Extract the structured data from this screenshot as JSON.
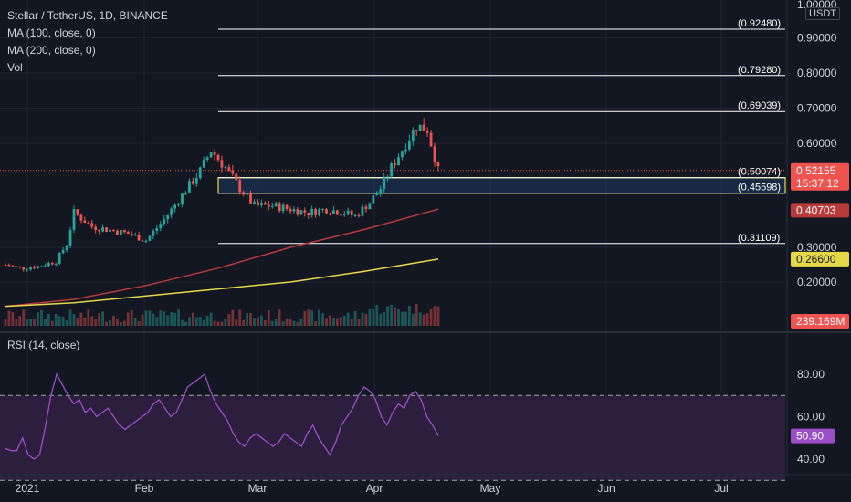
{
  "header": {
    "symbol": "Stellar / TetherUS, 1D, BINANCE",
    "ma100": "MA (100, close, 0)",
    "ma200": "MA (200, close, 0)",
    "vol": "Vol",
    "rsi": "RSI (14, close)",
    "unit": "USDT"
  },
  "colors": {
    "background": "#131722",
    "up": "#26a69a",
    "down": "#ef5350",
    "ma100": "#b83a3a",
    "ma200": "#e5d94a",
    "zone": "#1e3a5f",
    "zone_border": "#e5d94a",
    "rsi": "#9b4fc7",
    "rsi_band": "#2b1f3d",
    "level": "#ffffff"
  },
  "chart_data": [
    {
      "type": "candlestick",
      "title": "Stellar / TetherUS, 1D, BINANCE",
      "ylim": [
        0.1,
        1.0
      ],
      "y_ticks": [
        "1.00000",
        "0.90000",
        "0.80000",
        "0.70000",
        "0.60000",
        "0.30000",
        "0.20000"
      ],
      "x_ticks": [
        "2021",
        "Feb",
        "Mar",
        "Apr",
        "May",
        "Jun",
        "Jul"
      ],
      "close_path": [
        [
          1,
          0.25
        ],
        [
          5,
          0.24
        ],
        [
          10,
          0.245
        ],
        [
          15,
          0.26
        ],
        [
          18,
          0.31
        ],
        [
          20,
          0.4
        ],
        [
          25,
          0.36
        ],
        [
          30,
          0.35
        ],
        [
          35,
          0.34
        ],
        [
          40,
          0.32
        ],
        [
          45,
          0.38
        ],
        [
          50,
          0.45
        ],
        [
          55,
          0.52
        ],
        [
          58,
          0.58
        ],
        [
          62,
          0.53
        ],
        [
          66,
          0.47
        ],
        [
          70,
          0.42
        ],
        [
          75,
          0.42
        ],
        [
          80,
          0.41
        ],
        [
          85,
          0.4
        ],
        [
          90,
          0.41
        ],
        [
          95,
          0.4
        ],
        [
          98,
          0.39
        ],
        [
          102,
          0.43
        ],
        [
          105,
          0.47
        ],
        [
          108,
          0.53
        ],
        [
          112,
          0.6
        ],
        [
          115,
          0.65
        ],
        [
          118,
          0.64
        ],
        [
          121,
          0.52
        ]
      ],
      "levels": [
        {
          "label": "(0.92480)",
          "value": 0.9248
        },
        {
          "label": "(0.79280)",
          "value": 0.7928
        },
        {
          "label": "(0.69039)",
          "value": 0.69039
        },
        {
          "label": "(0.50074)",
          "value": 0.50074
        },
        {
          "label": "(0.45598)",
          "value": 0.45598
        },
        {
          "label": "(0.31109)",
          "value": 0.31109
        }
      ],
      "zone": [
        0.45598,
        0.50074
      ],
      "price_badges": [
        {
          "label": "0.52155",
          "sub": "15:37:12",
          "value": 0.52155,
          "color": "#ef5350"
        },
        {
          "label": "0.40703",
          "value": 0.40703,
          "color": "#b83a3a"
        },
        {
          "label": "0.26600",
          "value": 0.266,
          "color": "#e5d94a"
        },
        {
          "label": "239.169M",
          "value": 0.123,
          "color": "#ef5350"
        }
      ],
      "ma100_path": [
        [
          1,
          0.13
        ],
        [
          20,
          0.15
        ],
        [
          40,
          0.19
        ],
        [
          60,
          0.24
        ],
        [
          80,
          0.3
        ],
        [
          100,
          0.35
        ],
        [
          121,
          0.41
        ]
      ],
      "ma200_path": [
        [
          1,
          0.13
        ],
        [
          20,
          0.14
        ],
        [
          40,
          0.16
        ],
        [
          60,
          0.18
        ],
        [
          80,
          0.2
        ],
        [
          100,
          0.23
        ],
        [
          121,
          0.266
        ]
      ]
    },
    {
      "type": "line",
      "title": "RSI (14, close)",
      "ylim": [
        25,
        90
      ],
      "y_ticks": [
        "80.00",
        "60.00",
        "40.00"
      ],
      "band": [
        30,
        70
      ],
      "current": "50.90",
      "values": [
        45,
        44,
        44,
        50,
        42,
        40,
        42,
        55,
        70,
        80,
        75,
        70,
        66,
        68,
        62,
        64,
        60,
        62,
        64,
        60,
        56,
        54,
        56,
        58,
        60,
        62,
        66,
        68,
        64,
        60,
        62,
        68,
        74,
        76,
        78,
        80,
        72,
        66,
        62,
        58,
        52,
        48,
        46,
        50,
        52,
        50,
        48,
        46,
        48,
        52,
        50,
        48,
        46,
        52,
        56,
        50,
        46,
        42,
        48,
        56,
        60,
        64,
        70,
        74,
        72,
        68,
        60,
        56,
        62,
        66,
        64,
        70,
        72,
        68,
        60,
        56,
        51
      ]
    }
  ]
}
